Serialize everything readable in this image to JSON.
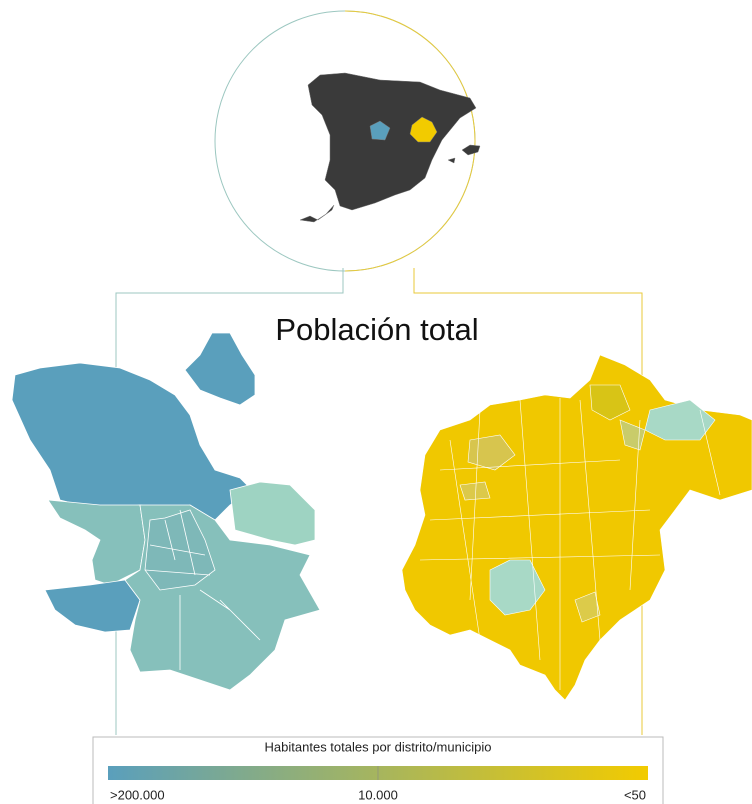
{
  "title": "Población total",
  "legend": {
    "title": "Habitantes totales por distrito/municipio",
    "labels": [
      ">200.000",
      "10.000",
      "<50"
    ],
    "colors": [
      "#5a9fbc",
      "#f2cb00"
    ]
  }
}
